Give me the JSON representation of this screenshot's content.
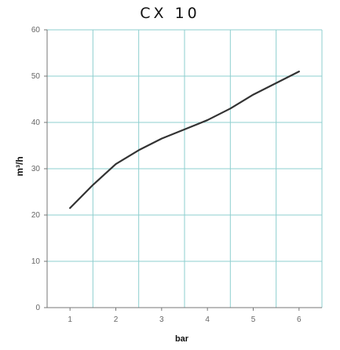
{
  "chart_data": {
    "type": "line",
    "title": "CX 10",
    "xlabel": "bar",
    "ylabel": "m³/h",
    "x": [
      1,
      1.5,
      2,
      2.5,
      3,
      3.5,
      4,
      4.5,
      5,
      5.5,
      6
    ],
    "series": [
      {
        "values": [
          21.5,
          26.5,
          31,
          34,
          36.5,
          38.5,
          40.5,
          43,
          46,
          48.5,
          51
        ]
      }
    ],
    "xlim": [
      0.5,
      6.5
    ],
    "ylim": [
      0,
      60
    ],
    "xticks": [
      1,
      2,
      3,
      4,
      5,
      6
    ],
    "yticks": [
      0,
      10,
      20,
      30,
      40,
      50,
      60
    ],
    "grid": true,
    "colors": {
      "grid": "#8ecfcf",
      "line": "#333333",
      "axis": "#777777"
    }
  }
}
